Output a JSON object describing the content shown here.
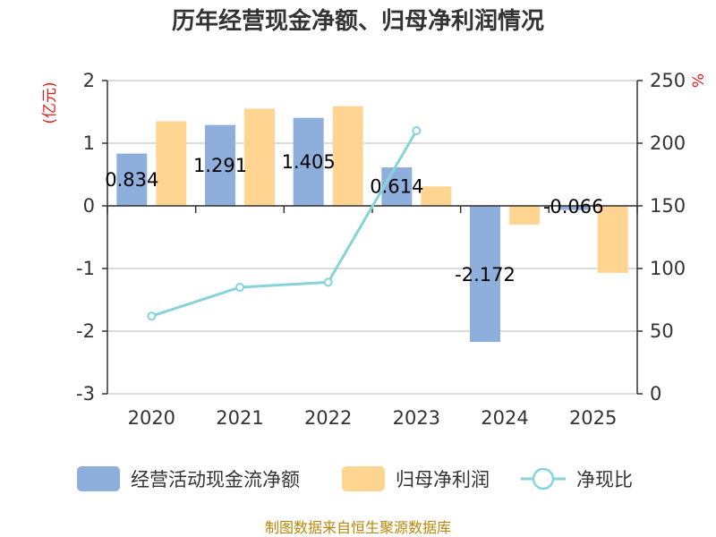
{
  "chart_data": {
    "type": "bar",
    "title": "历年经营现金净额、归母净利润情况",
    "categories": [
      "2020",
      "2021",
      "2022",
      "2023",
      "2024",
      "2025"
    ],
    "left_axis": {
      "unit": "(亿元)",
      "ylim": [
        -3,
        2
      ],
      "ticks": [
        "-3",
        "-2",
        "-1",
        "0",
        "1",
        "2"
      ]
    },
    "right_axis": {
      "unit": "%",
      "ylim": [
        0,
        250
      ],
      "ticks": [
        "0",
        "50",
        "100",
        "150",
        "200",
        "250"
      ]
    },
    "series": [
      {
        "name": "经营活动现金流净额",
        "type": "bar",
        "axis": "left",
        "color": "#8eaedb",
        "values": [
          0.834,
          1.291,
          1.405,
          0.614,
          -2.172,
          -0.066
        ],
        "labels": [
          "0.834",
          "1.291",
          "1.405",
          "0.614",
          "-2.172",
          "-0.066"
        ]
      },
      {
        "name": "归母净利润",
        "type": "bar",
        "axis": "left",
        "color": "#ffd591",
        "values": [
          1.35,
          1.55,
          1.59,
          0.31,
          -0.3,
          -1.07
        ]
      },
      {
        "name": "净现比",
        "type": "line",
        "axis": "right",
        "color": "#86d4d8",
        "values": [
          62,
          85,
          89,
          210,
          null,
          null
        ]
      }
    ],
    "grid": true,
    "legend": "bottom"
  },
  "footer": {
    "source": "制图数据来自恒生聚源数据库"
  }
}
